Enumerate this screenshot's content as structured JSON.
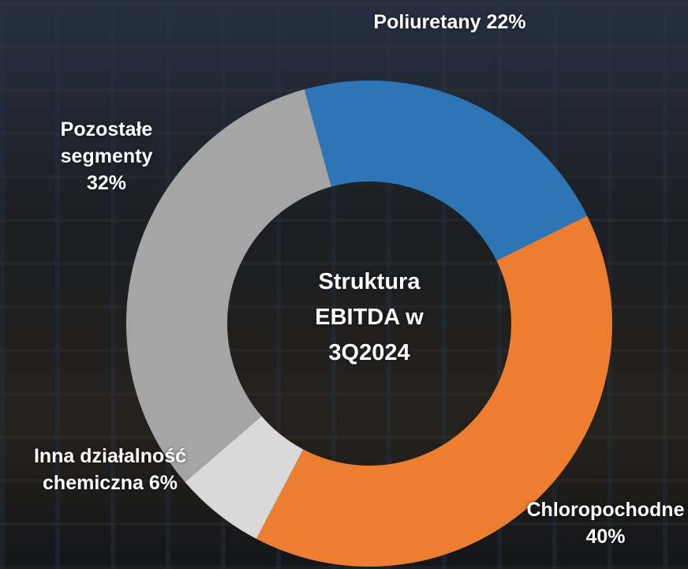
{
  "chart_data": {
    "type": "donut",
    "title": "Struktura EBITDA w 3Q2024",
    "categories": [
      "Poliuretany",
      "Chloropochodne",
      "Inna działalność chemiczna",
      "Pozostałe segmenty"
    ],
    "values": [
      22,
      40,
      6,
      32
    ],
    "value_labels": [
      "22%",
      "40%",
      "6%",
      "32%"
    ],
    "colors": [
      "#2e75b6",
      "#ed7d31",
      "#d9d9d9",
      "#a5a5a5"
    ]
  }
}
